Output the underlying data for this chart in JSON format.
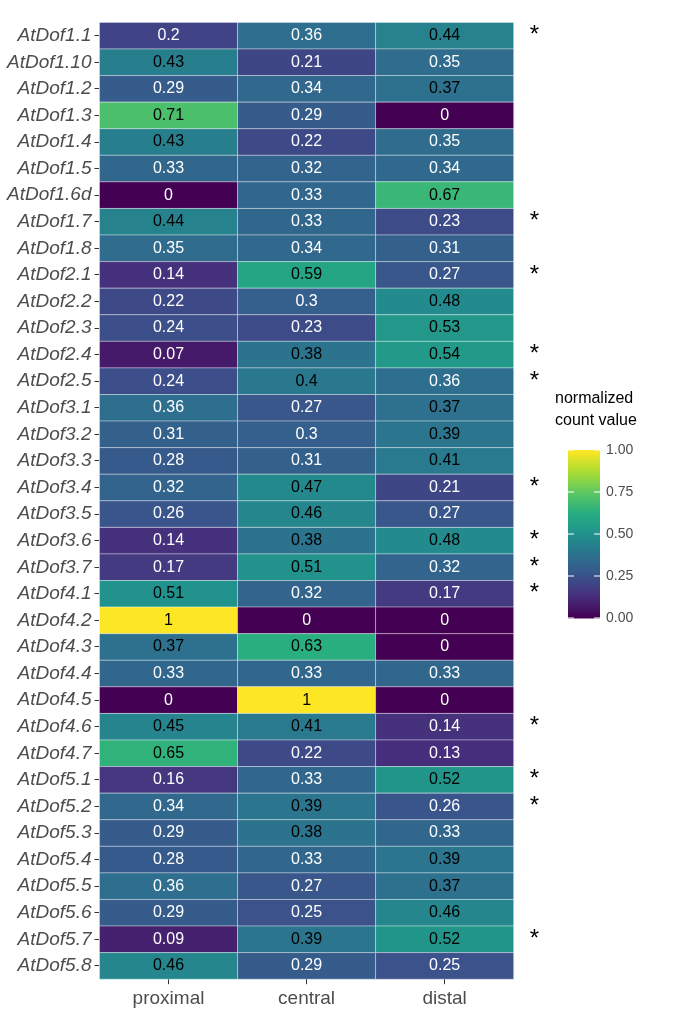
{
  "chart_data": {
    "type": "heatmap",
    "clabel": "normalized count value",
    "categories": [
      "proximal",
      "central",
      "distal"
    ],
    "y_categories": [
      "AtDof1.1",
      "AtDof1.10",
      "AtDof1.2",
      "AtDof1.3",
      "AtDof1.4",
      "AtDof1.5",
      "AtDof1.6d",
      "AtDof1.7",
      "AtDof1.8",
      "AtDof2.1",
      "AtDof2.2",
      "AtDof2.3",
      "AtDof2.4",
      "AtDof2.5",
      "AtDof3.1",
      "AtDof3.2",
      "AtDof3.3",
      "AtDof3.4",
      "AtDof3.5",
      "AtDof3.6",
      "AtDof3.7",
      "AtDof4.1",
      "AtDof4.2",
      "AtDof4.3",
      "AtDof4.4",
      "AtDof4.5",
      "AtDof4.6",
      "AtDof4.7",
      "AtDof5.1",
      "AtDof5.2",
      "AtDof5.3",
      "AtDof5.4",
      "AtDof5.5",
      "AtDof5.6",
      "AtDof5.7",
      "AtDof5.8"
    ],
    "y2_categories": [
      "*",
      null,
      null,
      null,
      null,
      null,
      null,
      "*",
      null,
      "*",
      null,
      null,
      "*",
      "*",
      null,
      null,
      null,
      "*",
      null,
      "*",
      "*",
      "*",
      null,
      null,
      null,
      null,
      "*",
      null,
      "*",
      "*",
      null,
      null,
      null,
      null,
      "*",
      null
    ],
    "cells": [
      [
        0.2,
        0.36,
        0.44
      ],
      [
        0.43,
        0.21,
        0.35
      ],
      [
        0.29,
        0.34,
        0.37
      ],
      [
        0.71,
        0.29,
        0
      ],
      [
        0.43,
        0.22,
        0.35
      ],
      [
        0.33,
        0.32,
        0.34
      ],
      [
        0,
        0.33,
        0.67
      ],
      [
        0.44,
        0.33,
        0.23
      ],
      [
        0.35,
        0.34,
        0.31
      ],
      [
        0.14,
        0.59,
        0.27
      ],
      [
        0.22,
        0.3,
        0.48
      ],
      [
        0.24,
        0.23,
        0.53
      ],
      [
        0.07,
        0.38,
        0.54
      ],
      [
        0.24,
        0.4,
        0.36
      ],
      [
        0.36,
        0.27,
        0.37
      ],
      [
        0.31,
        0.3,
        0.39
      ],
      [
        0.28,
        0.31,
        0.41
      ],
      [
        0.32,
        0.47,
        0.21
      ],
      [
        0.26,
        0.46,
        0.27
      ],
      [
        0.14,
        0.38,
        0.48
      ],
      [
        0.17,
        0.51,
        0.32
      ],
      [
        0.51,
        0.32,
        0.17
      ],
      [
        1,
        0,
        0
      ],
      [
        0.37,
        0.63,
        0
      ],
      [
        0.33,
        0.33,
        0.33
      ],
      [
        0,
        1,
        0
      ],
      [
        0.45,
        0.41,
        0.14
      ],
      [
        0.65,
        0.22,
        0.13
      ],
      [
        0.16,
        0.33,
        0.52
      ],
      [
        0.34,
        0.39,
        0.26
      ],
      [
        0.29,
        0.38,
        0.33
      ],
      [
        0.28,
        0.33,
        0.39
      ],
      [
        0.36,
        0.27,
        0.37
      ],
      [
        0.29,
        0.25,
        0.46
      ],
      [
        0.09,
        0.39,
        0.52
      ],
      [
        0.46,
        0.29,
        0.25
      ]
    ],
    "data_labels": true,
    "clim": [
      0,
      1
    ],
    "cticks": [
      {
        "value": 0,
        "label": "0.00"
      },
      {
        "value": 0.25,
        "label": "0.25"
      },
      {
        "value": 0.5,
        "label": "0.50"
      },
      {
        "value": 0.75,
        "label": "0.75"
      },
      {
        "value": 1,
        "label": "1.00"
      }
    ]
  }
}
